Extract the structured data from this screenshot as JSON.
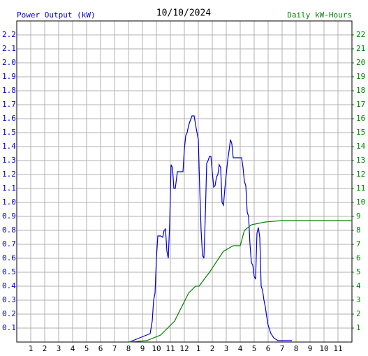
{
  "chart_data": {
    "type": "line",
    "title": "10/10/2024",
    "ylabel": "Power Output (kW)",
    "y2label": "Daily kW-Hours",
    "xlim": [
      0,
      24
    ],
    "xticks": [
      1,
      2,
      3,
      4,
      5,
      6,
      7,
      8,
      9,
      10,
      11,
      12,
      {
        "value": 13,
        "label": "1"
      },
      {
        "value": 14,
        "label": "2"
      },
      {
        "value": 15,
        "label": "3"
      },
      {
        "value": 16,
        "label": "4"
      },
      {
        "value": 17,
        "label": "5"
      },
      {
        "value": 18,
        "label": "6"
      },
      {
        "value": 19,
        "label": "7"
      },
      {
        "value": 20,
        "label": "8"
      },
      {
        "value": 21,
        "label": "9"
      },
      {
        "value": 22,
        "label": "10"
      },
      {
        "value": 23,
        "label": "11"
      }
    ],
    "ylim": [
      0,
      2.3
    ],
    "yticks": [
      0.1,
      0.2,
      0.3,
      0.4,
      0.5,
      0.6,
      0.7,
      0.8,
      0.9,
      {
        "value": 1,
        "label": "1.0"
      },
      1.1,
      1.2,
      1.3,
      1.4,
      1.5,
      1.6,
      1.7,
      1.8,
      1.9,
      {
        "value": 2,
        "label": "2.0"
      },
      2.1,
      2.2
    ],
    "y2lim": [
      0,
      23
    ],
    "y2ticks": [
      1,
      2,
      3,
      4,
      5,
      6,
      7,
      8,
      9,
      10,
      11,
      12,
      13,
      14,
      15,
      16,
      17,
      18,
      19,
      20,
      21,
      22
    ],
    "grid": true,
    "series": [
      {
        "name": "Power Output (kW)",
        "color": "#0000cc",
        "axis": "y",
        "x": [
          8.0,
          8.05,
          8.3,
          8.8,
          9.05,
          9.3,
          9.55,
          9.7,
          9.8,
          9.9,
          10.0,
          10.1,
          10.3,
          10.45,
          10.55,
          10.65,
          10.75,
          10.85,
          10.95,
          11.05,
          11.15,
          11.25,
          11.35,
          11.5,
          11.9,
          12.0,
          12.1,
          12.2,
          12.3,
          12.4,
          12.55,
          12.7,
          12.85,
          13.0,
          13.1,
          13.2,
          13.3,
          13.4,
          13.5,
          13.6,
          13.7,
          13.8,
          13.9,
          14.0,
          14.1,
          14.2,
          14.3,
          14.4,
          14.5,
          14.6,
          14.7,
          14.8,
          14.9,
          15.0,
          15.1,
          15.2,
          15.3,
          15.4,
          15.5,
          16.1,
          16.2,
          16.3,
          16.4,
          16.5,
          16.6,
          16.7,
          16.8,
          16.9,
          17.0,
          17.1,
          17.2,
          17.3,
          17.4,
          17.5,
          17.6,
          17.7,
          17.8,
          17.9,
          18.0,
          18.2,
          18.4,
          18.7,
          19.7
        ],
        "values": [
          0,
          0,
          0.01,
          0.03,
          0.04,
          0.05,
          0.06,
          0.15,
          0.3,
          0.35,
          0.6,
          0.76,
          0.76,
          0.75,
          0.8,
          0.81,
          0.65,
          0.6,
          0.85,
          1.27,
          1.25,
          1.1,
          1.1,
          1.22,
          1.22,
          1.38,
          1.48,
          1.5,
          1.55,
          1.58,
          1.62,
          1.62,
          1.53,
          1.45,
          1.1,
          0.8,
          0.62,
          0.6,
          0.9,
          1.28,
          1.3,
          1.33,
          1.33,
          1.22,
          1.11,
          1.12,
          1.18,
          1.2,
          1.27,
          1.25,
          1.0,
          0.98,
          1.1,
          1.2,
          1.3,
          1.37,
          1.45,
          1.42,
          1.32,
          1.32,
          1.25,
          1.15,
          1.12,
          0.93,
          0.9,
          0.7,
          0.57,
          0.55,
          0.47,
          0.45,
          0.78,
          0.82,
          0.75,
          0.4,
          0.37,
          0.3,
          0.25,
          0.18,
          0.12,
          0.06,
          0.03,
          0.01,
          0.01
        ]
      },
      {
        "name": "Daily kW-Hours",
        "color": "#008000",
        "axis": "y2",
        "x": [
          8.0,
          9.3,
          10.3,
          11.3,
          11.8,
          12.3,
          12.8,
          13.05,
          13.8,
          14.8,
          15.5,
          16.0,
          16.3,
          16.8,
          17.8,
          19.0,
          24.0
        ],
        "values": [
          0,
          0.1,
          0.5,
          1.5,
          2.5,
          3.5,
          4.0,
          4.0,
          5.0,
          6.5,
          6.9,
          6.9,
          8.0,
          8.4,
          8.6,
          8.7,
          8.7
        ]
      }
    ]
  }
}
